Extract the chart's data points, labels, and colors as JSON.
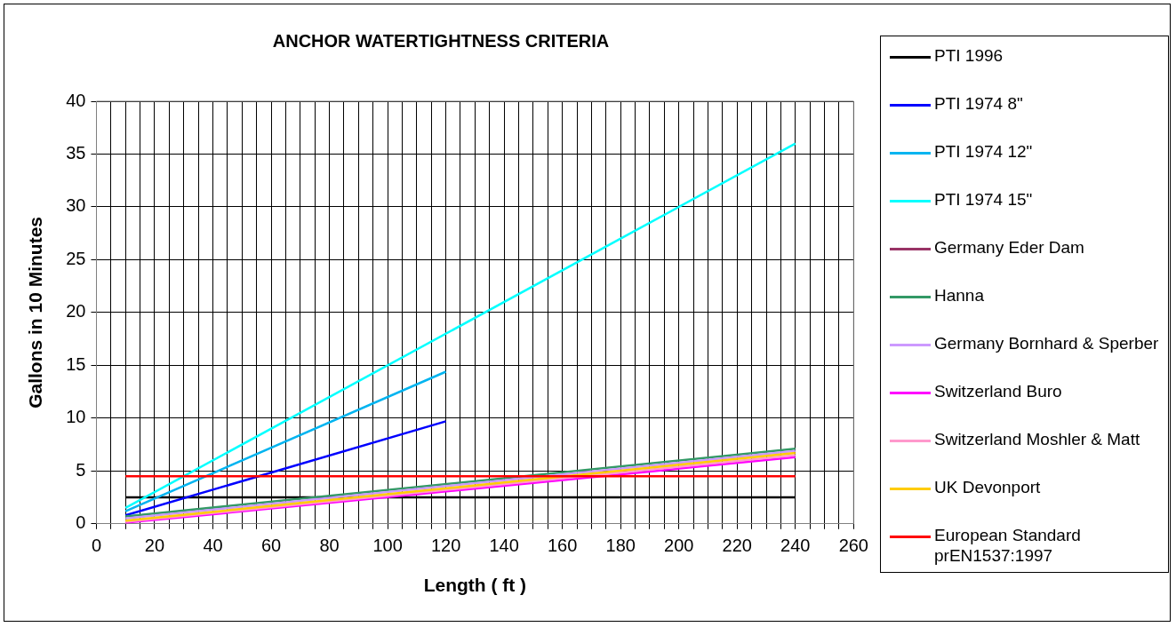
{
  "chart_data": {
    "type": "line",
    "title": "ANCHOR WATERTIGHTNESS CRITERIA",
    "xlabel": "Length ( ft )",
    "ylabel": "Gallons in 10 Minutes",
    "xlim": [
      0,
      260
    ],
    "xticks": [
      0,
      {
        "value": 5,
        "label": null
      },
      {
        "value": 10,
        "label": null
      },
      {
        "value": 15,
        "label": null
      },
      20,
      {
        "value": 25,
        "label": null
      },
      {
        "value": 30,
        "label": null
      },
      {
        "value": 35,
        "label": null
      },
      40,
      {
        "value": 45,
        "label": null
      },
      {
        "value": 50,
        "label": null
      },
      {
        "value": 55,
        "label": null
      },
      60,
      {
        "value": 65,
        "label": null
      },
      {
        "value": 70,
        "label": null
      },
      {
        "value": 75,
        "label": null
      },
      80,
      {
        "value": 85,
        "label": null
      },
      {
        "value": 90,
        "label": null
      },
      {
        "value": 95,
        "label": null
      },
      100,
      {
        "value": 105,
        "label": null
      },
      {
        "value": 110,
        "label": null
      },
      {
        "value": 115,
        "label": null
      },
      120,
      {
        "value": 125,
        "label": null
      },
      {
        "value": 130,
        "label": null
      },
      {
        "value": 135,
        "label": null
      },
      140,
      {
        "value": 145,
        "label": null
      },
      {
        "value": 150,
        "label": null
      },
      {
        "value": 155,
        "label": null
      },
      160,
      {
        "value": 165,
        "label": null
      },
      {
        "value": 170,
        "label": null
      },
      {
        "value": 175,
        "label": null
      },
      180,
      {
        "value": 185,
        "label": null
      },
      {
        "value": 190,
        "label": null
      },
      {
        "value": 195,
        "label": null
      },
      200,
      {
        "value": 205,
        "label": null
      },
      {
        "value": 210,
        "label": null
      },
      {
        "value": 215,
        "label": null
      },
      220,
      {
        "value": 225,
        "label": null
      },
      {
        "value": 230,
        "label": null
      },
      {
        "value": 235,
        "label": null
      },
      240,
      {
        "value": 245,
        "label": null
      },
      {
        "value": 250,
        "label": null
      },
      {
        "value": 255,
        "label": null
      },
      260
    ],
    "ylim": [
      0,
      40
    ],
    "yticks": [
      0,
      5,
      10,
      15,
      20,
      25,
      30,
      35,
      40
    ],
    "grid": true,
    "legend": "right",
    "marker": "none",
    "line_style": "solid",
    "series": [
      {
        "name": "PTI 1996",
        "color": "#000000",
        "x": [
          10,
          240
        ],
        "values": [
          2.5,
          2.5
        ]
      },
      {
        "name": "PTI 1974 8\"",
        "color": "#0000ff",
        "x": [
          10,
          120
        ],
        "values": [
          0.8,
          9.7
        ]
      },
      {
        "name": "PTI 1974 12\"",
        "color": "#00b4f0",
        "x": [
          10,
          120
        ],
        "values": [
          1.2,
          14.4
        ]
      },
      {
        "name": "PTI 1974 15\"",
        "color": "#00ffff",
        "x": [
          10,
          240
        ],
        "values": [
          1.5,
          36
        ]
      },
      {
        "name": "Germany Eder Dam",
        "color": "#993366",
        "values": [
          null,
          null
        ]
      },
      {
        "name": "Hanna",
        "color": "#339966",
        "x": [
          10,
          240
        ],
        "values": [
          0.7,
          7.1
        ]
      },
      {
        "name": "Germany Bornhard & Sperber",
        "color": "#cc99ff",
        "x": [
          10,
          240
        ],
        "values": [
          0.5,
          6.9
        ]
      },
      {
        "name": "Switzerland Buro",
        "color": "#ff00ff",
        "x": [
          10,
          240
        ],
        "values": [
          0.1,
          6.3
        ]
      },
      {
        "name": "Switzerland  Moshler & Matt",
        "color": "#ff99cc",
        "x": [
          10,
          240
        ],
        "values": [
          0.2,
          6.5
        ]
      },
      {
        "name": "UK  Devonport",
        "color": "#ffcc00",
        "x": [
          10,
          240
        ],
        "values": [
          0.3,
          6.7
        ]
      },
      {
        "name": "European Standard prEN1537:1997",
        "color": "#ff0000",
        "x": [
          10,
          240
        ],
        "values": [
          4.5,
          4.5
        ]
      }
    ]
  }
}
